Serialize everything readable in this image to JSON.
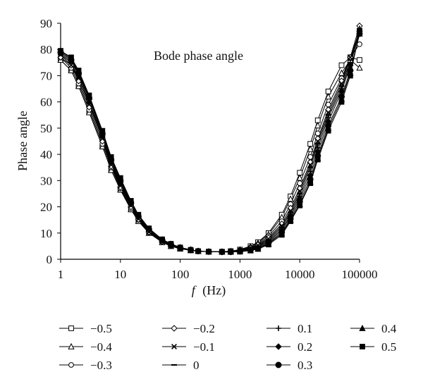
{
  "chart_data": {
    "type": "line",
    "title": "Bode phase angle",
    "xlabel_italic": "f",
    "xlabel_unit": "(Hz)",
    "ylabel": "Phase angle",
    "x_scale": "log",
    "xlim": [
      1,
      100000
    ],
    "ylim": [
      0,
      90
    ],
    "x_ticks": [
      "1",
      "10",
      "100",
      "1000",
      "10000",
      "100000"
    ],
    "y_ticks": [
      "0",
      "10",
      "20",
      "30",
      "40",
      "50",
      "60",
      "70",
      "80",
      "90"
    ],
    "grid": false,
    "legend_position": "bottom",
    "x": [
      1,
      1.5,
      2,
      3,
      5,
      7,
      10,
      15,
      20,
      30,
      50,
      70,
      100,
      150,
      200,
      300,
      500,
      700,
      1000,
      1500,
      2000,
      3000,
      5000,
      7000,
      10000,
      15000,
      20000,
      30000,
      50000,
      70000,
      100000
    ],
    "series": [
      {
        "name": "−0.5",
        "marker": "square-open",
        "values": [
          76,
          72,
          66,
          56,
          43,
          34,
          26.5,
          19,
          14.5,
          10,
          6.5,
          5,
          4,
          3.4,
          3.1,
          2.9,
          2.9,
          3.1,
          3.7,
          5,
          6.5,
          10,
          17,
          24,
          33,
          44,
          53,
          64,
          74,
          77,
          76
        ]
      },
      {
        "name": "−0.4",
        "marker": "triangle-open",
        "values": [
          76,
          72,
          66,
          56,
          43,
          34,
          26.5,
          19,
          14.5,
          10,
          6.5,
          5,
          4,
          3.4,
          3.1,
          2.9,
          2.9,
          3.1,
          3.6,
          4.8,
          6.2,
          9.5,
          16,
          23,
          31,
          42,
          51,
          62,
          71,
          76,
          73
        ]
      },
      {
        "name": "−0.3",
        "marker": "circle-open",
        "values": [
          77,
          73,
          67,
          57,
          44,
          35,
          27,
          19.5,
          15,
          10.2,
          6.7,
          5.1,
          4.1,
          3.4,
          3.1,
          2.9,
          2.9,
          3,
          3.5,
          4.5,
          5.8,
          8.8,
          14.5,
          21,
          29,
          39,
          48,
          59,
          69,
          77,
          82
        ]
      },
      {
        "name": "−0.2",
        "marker": "diamond-open",
        "values": [
          77,
          74,
          68,
          58,
          45,
          35.5,
          27.5,
          20,
          15.2,
          10.4,
          6.8,
          5.2,
          4.2,
          3.5,
          3.1,
          2.9,
          2.8,
          3,
          3.4,
          4.3,
          5.5,
          8.2,
          13.5,
          19.5,
          27,
          37,
          46,
          57,
          68,
          77,
          89
        ]
      },
      {
        "name": "−0.1",
        "marker": "x",
        "values": [
          78,
          74,
          69,
          59,
          46,
          36,
          28,
          20.5,
          15.5,
          10.6,
          7,
          5.3,
          4.2,
          3.5,
          3.1,
          2.9,
          2.8,
          2.9,
          3.3,
          4.1,
          5.2,
          7.8,
          12.8,
          18.5,
          26,
          36,
          45,
          56,
          67,
          77,
          87
        ]
      },
      {
        "name": "0",
        "marker": "dash",
        "values": [
          78,
          75,
          69,
          59.5,
          46.5,
          36.5,
          28.5,
          20.8,
          15.8,
          10.8,
          7.1,
          5.4,
          4.3,
          3.5,
          3.1,
          2.9,
          2.8,
          2.9,
          3.2,
          4,
          5,
          7.4,
          12.2,
          17.8,
          25,
          35,
          44,
          55,
          66,
          76,
          87
        ]
      },
      {
        "name": "0.1",
        "marker": "plus",
        "values": [
          78.5,
          75.5,
          70,
          60,
          47,
          37,
          29,
          21,
          16,
          11,
          7.2,
          5.5,
          4.3,
          3.5,
          3.1,
          2.9,
          2.8,
          2.9,
          3.1,
          3.8,
          4.7,
          7,
          11.5,
          17,
          24,
          33.5,
          42.5,
          54,
          65,
          75,
          88
        ]
      },
      {
        "name": "0.2",
        "marker": "diamond-filled",
        "values": [
          79,
          76,
          70.5,
          61,
          47.5,
          37.5,
          29.5,
          21.3,
          16.2,
          11.2,
          7.3,
          5.6,
          4.4,
          3.6,
          3.1,
          2.9,
          2.8,
          2.8,
          3.1,
          3.7,
          4.5,
          6.6,
          11,
          16.3,
          23,
          32,
          41,
          52.5,
          64,
          74,
          87
        ]
      },
      {
        "name": "0.3",
        "marker": "circle-filled",
        "values": [
          79,
          76,
          71,
          61.5,
          48,
          38,
          30,
          21.6,
          16.4,
          11.4,
          7.4,
          5.7,
          4.4,
          3.6,
          3.1,
          2.9,
          2.8,
          2.8,
          3,
          3.5,
          4.2,
          6.2,
          10.3,
          15.5,
          22,
          30.5,
          39.5,
          51,
          62,
          72,
          86
        ]
      },
      {
        "name": "0.4",
        "marker": "triangle-filled",
        "values": [
          79.5,
          76.5,
          71.5,
          62,
          48.5,
          38.5,
          30.5,
          22,
          16.7,
          11.6,
          7.5,
          5.8,
          4.5,
          3.6,
          3.1,
          2.9,
          2.8,
          2.8,
          3,
          3.4,
          4,
          5.9,
          9.8,
          15,
          21,
          29.5,
          38.5,
          50,
          61,
          71,
          86
        ]
      },
      {
        "name": "0.5",
        "marker": "square-filled",
        "values": [
          79.5,
          77,
          72,
          62.5,
          49,
          39,
          31,
          22.3,
          17,
          11.8,
          7.6,
          5.9,
          4.5,
          3.6,
          3.1,
          2.9,
          2.8,
          2.8,
          2.9,
          3.3,
          3.9,
          5.6,
          9.3,
          14.5,
          20.5,
          29,
          38,
          49,
          60,
          70,
          87
        ]
      }
    ]
  }
}
